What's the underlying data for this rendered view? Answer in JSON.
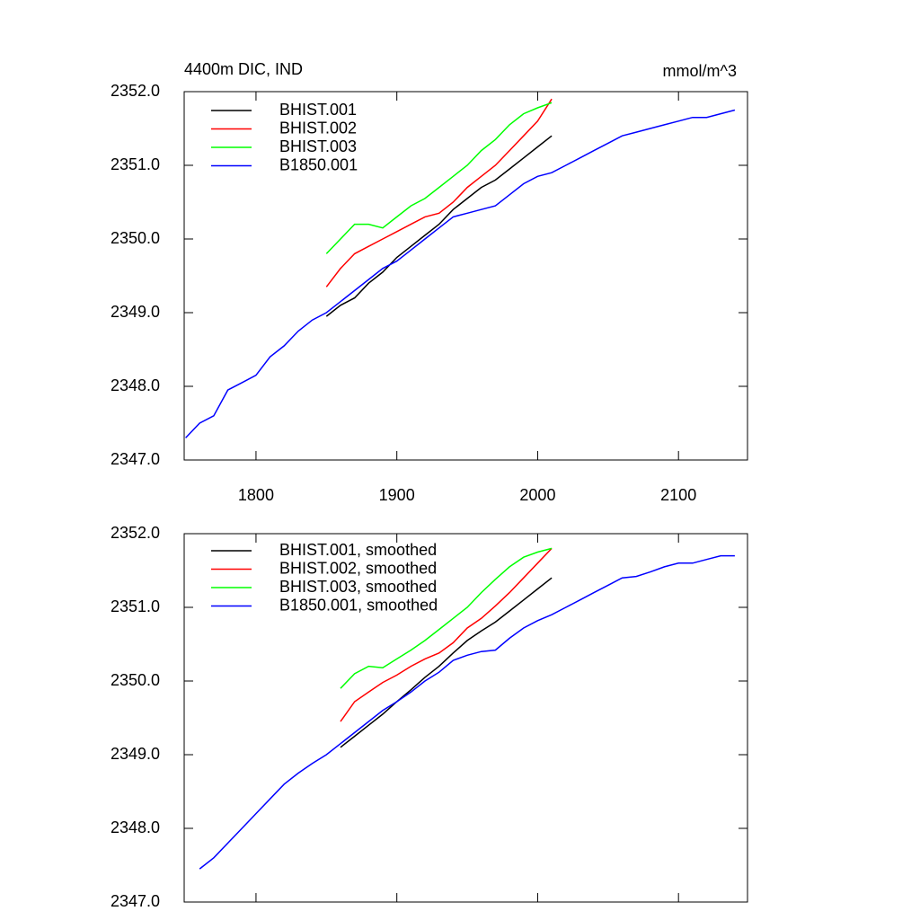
{
  "chart_data": [
    {
      "type": "line",
      "title": "4400m DIC, IND",
      "units": "mmol/m^3",
      "x": [
        1750,
        1760,
        1770,
        1780,
        1790,
        1800,
        1810,
        1820,
        1830,
        1840,
        1850,
        1860,
        1870,
        1880,
        1890,
        1900,
        1910,
        1920,
        1930,
        1940,
        1950,
        1960,
        1970,
        1980,
        1990,
        2000,
        2010,
        2020,
        2030,
        2040,
        2050,
        2060,
        2070,
        2080,
        2090,
        2100,
        2110,
        2120,
        2130,
        2140
      ],
      "xlim": [
        1749,
        2149
      ],
      "xticks": [
        1800,
        1900,
        2000,
        2100
      ],
      "ylim": [
        2347,
        2352
      ],
      "yticks": [
        {
          "value": 2347,
          "label": "2347.0"
        },
        {
          "value": 2348,
          "label": "2348.0"
        },
        {
          "value": 2349,
          "label": "2349.0"
        },
        {
          "value": 2350,
          "label": "2350.0"
        },
        {
          "value": 2351,
          "label": "2351.0"
        },
        {
          "value": 2352,
          "label": "2352.0"
        }
      ],
      "legend": "upper left",
      "series": [
        {
          "name": "BHIST.001",
          "color": "#000000",
          "values": [
            null,
            null,
            null,
            null,
            null,
            null,
            null,
            null,
            null,
            null,
            2348.95,
            2349.1,
            2349.2,
            2349.4,
            2349.55,
            2349.75,
            2349.9,
            2350.05,
            2350.2,
            2350.4,
            2350.55,
            2350.7,
            2350.8,
            2350.95,
            2351.1,
            2351.25,
            2351.4,
            null,
            null,
            null,
            null,
            null,
            null,
            null,
            null,
            null,
            null,
            null,
            null,
            null
          ]
        },
        {
          "name": "BHIST.002",
          "color": "#ff0000",
          "values": [
            null,
            null,
            null,
            null,
            null,
            null,
            null,
            null,
            null,
            null,
            2349.35,
            2349.6,
            2349.8,
            2349.9,
            2350.0,
            2350.1,
            2350.2,
            2350.3,
            2350.35,
            2350.5,
            2350.7,
            2350.85,
            2351.0,
            2351.2,
            2351.4,
            2351.6,
            2351.9,
            null,
            null,
            null,
            null,
            null,
            null,
            null,
            null,
            null,
            null,
            null,
            null,
            null
          ]
        },
        {
          "name": "BHIST.003",
          "color": "#00ff00",
          "values": [
            null,
            null,
            null,
            null,
            null,
            null,
            null,
            null,
            null,
            null,
            2349.8,
            2350.0,
            2350.2,
            2350.2,
            2350.15,
            2350.3,
            2350.45,
            2350.55,
            2350.7,
            2350.85,
            2351.0,
            2351.2,
            2351.35,
            2351.55,
            2351.7,
            2351.78,
            2351.85,
            null,
            null,
            null,
            null,
            null,
            null,
            null,
            null,
            null,
            null,
            null,
            null,
            null
          ]
        },
        {
          "name": "B1850.001",
          "color": "#0000ff",
          "values": [
            2347.3,
            2347.5,
            2347.6,
            2347.95,
            2348.05,
            2348.15,
            2348.4,
            2348.55,
            2348.75,
            2348.9,
            2349.0,
            2349.15,
            2349.3,
            2349.45,
            2349.6,
            2349.7,
            2349.85,
            2350.0,
            2350.15,
            2350.3,
            2350.35,
            2350.4,
            2350.45,
            2350.6,
            2350.75,
            2350.85,
            2350.9,
            2351.0,
            2351.1,
            2351.2,
            2351.3,
            2351.4,
            2351.45,
            2351.5,
            2351.55,
            2351.6,
            2351.65,
            2351.65,
            2351.7,
            2351.75
          ]
        }
      ]
    },
    {
      "type": "line",
      "x": [
        1750,
        1760,
        1770,
        1780,
        1790,
        1800,
        1810,
        1820,
        1830,
        1840,
        1850,
        1860,
        1870,
        1880,
        1890,
        1900,
        1910,
        1920,
        1930,
        1940,
        1950,
        1960,
        1970,
        1980,
        1990,
        2000,
        2010,
        2020,
        2030,
        2040,
        2050,
        2060,
        2070,
        2080,
        2090,
        2100,
        2110,
        2120,
        2130,
        2140
      ],
      "xlim": [
        1749,
        2149
      ],
      "xticks": [
        1800,
        1900,
        2000,
        2100
      ],
      "ylim": [
        2347,
        2352
      ],
      "yticks": [
        {
          "value": 2347,
          "label": "2347.0"
        },
        {
          "value": 2348,
          "label": "2348.0"
        },
        {
          "value": 2349,
          "label": "2349.0"
        },
        {
          "value": 2350,
          "label": "2350.0"
        },
        {
          "value": 2351,
          "label": "2351.0"
        },
        {
          "value": 2352,
          "label": "2352.0"
        }
      ],
      "legend": "upper left",
      "series": [
        {
          "name": "BHIST.001, smoothed",
          "color": "#000000",
          "values": [
            null,
            null,
            null,
            null,
            null,
            null,
            null,
            null,
            null,
            null,
            null,
            2349.1,
            2349.25,
            2349.4,
            2349.55,
            2349.72,
            2349.88,
            2350.05,
            2350.2,
            2350.38,
            2350.55,
            2350.68,
            2350.8,
            2350.95,
            2351.1,
            2351.25,
            2351.4,
            null,
            null,
            null,
            null,
            null,
            null,
            null,
            null,
            null,
            null,
            null,
            null,
            null
          ]
        },
        {
          "name": "BHIST.002, smoothed",
          "color": "#ff0000",
          "values": [
            null,
            null,
            null,
            null,
            null,
            null,
            null,
            null,
            null,
            null,
            null,
            2349.45,
            2349.72,
            2349.85,
            2349.98,
            2350.08,
            2350.2,
            2350.3,
            2350.38,
            2350.52,
            2350.72,
            2350.85,
            2351.02,
            2351.2,
            2351.4,
            2351.6,
            2351.8,
            null,
            null,
            null,
            null,
            null,
            null,
            null,
            null,
            null,
            null,
            null,
            null,
            null
          ]
        },
        {
          "name": "BHIST.003, smoothed",
          "color": "#00ff00",
          "values": [
            null,
            null,
            null,
            null,
            null,
            null,
            null,
            null,
            null,
            null,
            null,
            2349.9,
            2350.1,
            2350.2,
            2350.18,
            2350.3,
            2350.42,
            2350.55,
            2350.7,
            2350.85,
            2351.0,
            2351.2,
            2351.38,
            2351.55,
            2351.68,
            2351.75,
            2351.8,
            null,
            null,
            null,
            null,
            null,
            null,
            null,
            null,
            null,
            null,
            null,
            null,
            null
          ]
        },
        {
          "name": "B1850.001, smoothed",
          "color": "#0000ff",
          "values": [
            null,
            2347.45,
            2347.6,
            2347.8,
            2348.0,
            2348.2,
            2348.4,
            2348.6,
            2348.75,
            2348.88,
            2349.0,
            2349.15,
            2349.3,
            2349.45,
            2349.6,
            2349.72,
            2349.85,
            2350.0,
            2350.12,
            2350.28,
            2350.35,
            2350.4,
            2350.42,
            2350.58,
            2350.72,
            2350.82,
            2350.9,
            2351.0,
            2351.1,
            2351.2,
            2351.3,
            2351.4,
            2351.42,
            2351.48,
            2351.55,
            2351.6,
            2351.6,
            2351.65,
            2351.7,
            2351.7
          ]
        }
      ]
    }
  ]
}
